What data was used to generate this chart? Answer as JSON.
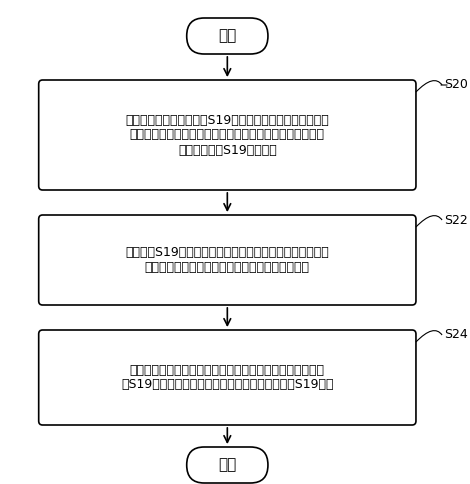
{
  "title": "",
  "background_color": "#ffffff",
  "start_label": "开始",
  "end_label": "结束",
  "boxes": [
    {
      "id": "s20",
      "label": "读取第一存储器中的当前S19文件，将其中隐性存储的各标\n定参数对应的第二存储器的存储地址和初始值，以显性的方\n式写入一第二S19文件中；",
      "step": "S20"
    },
    {
      "id": "s22",
      "label": "解析第二S19文件，对待标定的汽车电子控制单元进行在线\n标定处理，获得经过在线标定处理的标定参数值；",
      "step": "S22"
    },
    {
      "id": "s24",
      "label": "将经过在线标定处理的各标定参数值替换第一存储器中的当\n前S19文件中的各标定参数的初始值，修改该当前S19文件",
      "step": "S24"
    }
  ],
  "box_color": "#ffffff",
  "box_edge_color": "#000000",
  "arrow_color": "#000000",
  "text_color": "#000000",
  "font_size": 9,
  "step_font_size": 9
}
